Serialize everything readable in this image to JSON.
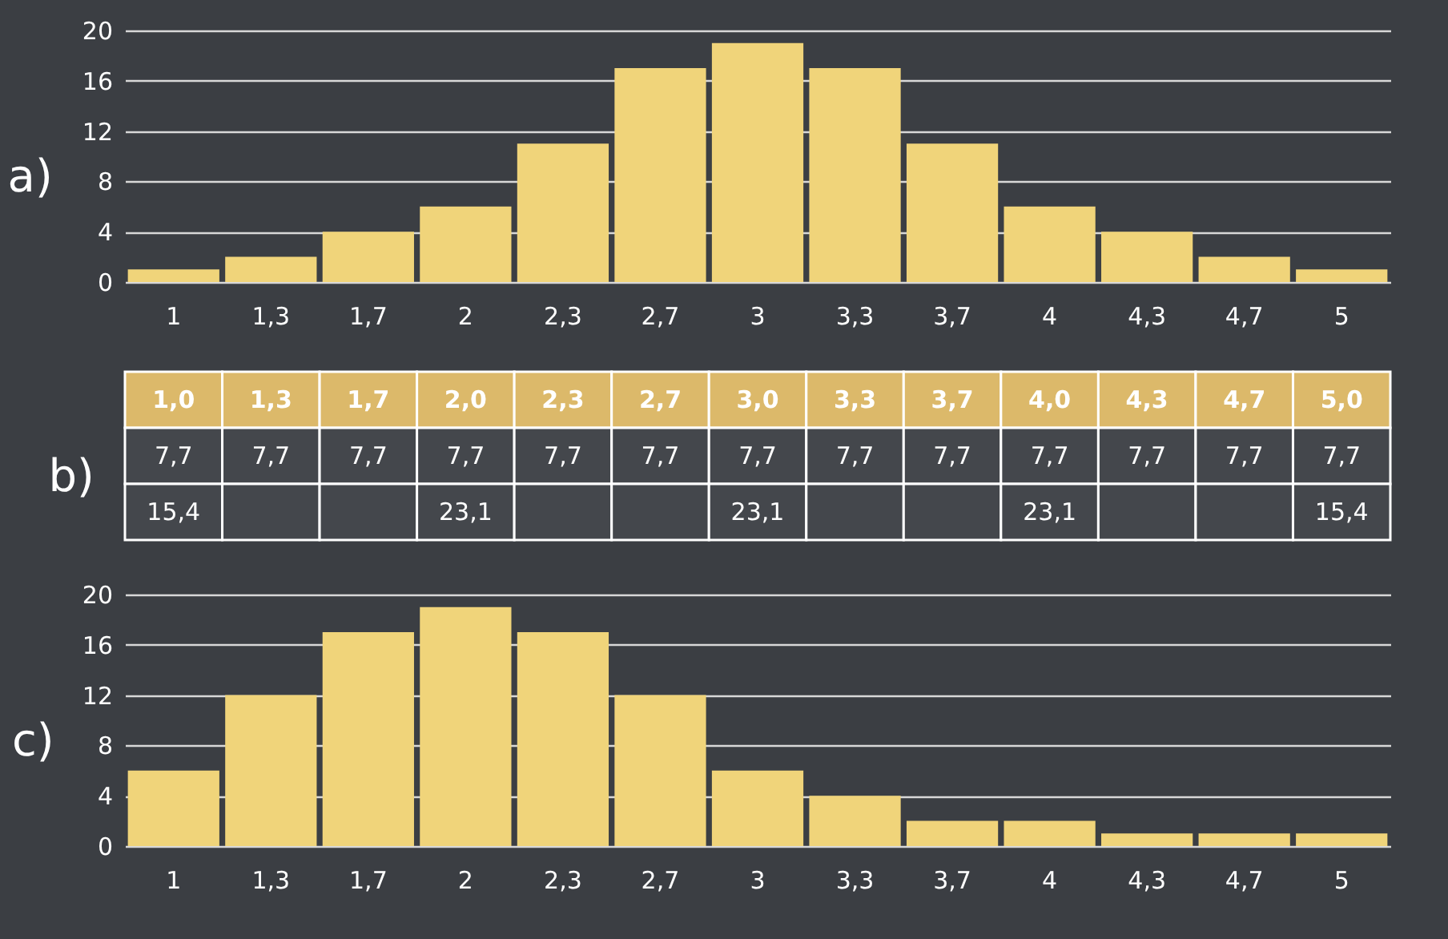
{
  "chart_data": [
    {
      "type": "bar",
      "title": "a)",
      "categories": [
        "1",
        "1,3",
        "1,7",
        "2",
        "2,3",
        "2,7",
        "3",
        "3,3",
        "3,7",
        "4",
        "4,3",
        "4,7",
        "5"
      ],
      "values": [
        1,
        2,
        4,
        6,
        11,
        17,
        19,
        17,
        11,
        6,
        4,
        2,
        1
      ],
      "color": "#f0d47a",
      "ylim": [
        0,
        20
      ],
      "yticks": [
        0,
        4,
        8,
        12,
        16,
        20
      ],
      "grid": "y"
    },
    {
      "type": "other",
      "title": "b)",
      "categories": [
        "1,0",
        "1,3",
        "1,7",
        "2,0",
        "2,3",
        "2,7",
        "3,0",
        "3,3",
        "3,7",
        "4,0",
        "4,3",
        "4,7",
        "5,0"
      ],
      "series": [
        {
          "values": [
            7.7,
            7.7,
            7.7,
            7.7,
            7.7,
            7.7,
            7.7,
            7.7,
            7.7,
            7.7,
            7.7,
            7.7,
            7.7
          ],
          "value_labels": [
            "7,7",
            "7,7",
            "7,7",
            "7,7",
            "7,7",
            "7,7",
            "7,7",
            "7,7",
            "7,7",
            "7,7",
            "7,7",
            "7,7",
            "7,7"
          ]
        },
        {
          "values": [
            15.4,
            null,
            null,
            23.1,
            null,
            null,
            23.1,
            null,
            null,
            23.1,
            null,
            null,
            15.4
          ],
          "value_labels": [
            "15,4",
            null,
            null,
            "23,1",
            null,
            null,
            "23,1",
            null,
            null,
            "23,1",
            null,
            null,
            "15,4"
          ]
        }
      ]
    },
    {
      "type": "bar",
      "title": "c)",
      "categories": [
        "1",
        "1,3",
        "1,7",
        "2",
        "2,3",
        "2,7",
        "3",
        "3,3",
        "3,7",
        "4",
        "4,3",
        "4,7",
        "5"
      ],
      "values": [
        6,
        12,
        17,
        19,
        17,
        12,
        6,
        4,
        2,
        2,
        1,
        1,
        1
      ],
      "color": "#f0d47a",
      "ylim": [
        0,
        20
      ],
      "yticks": [
        0,
        4,
        8,
        12,
        16,
        20
      ],
      "grid": "y"
    }
  ]
}
